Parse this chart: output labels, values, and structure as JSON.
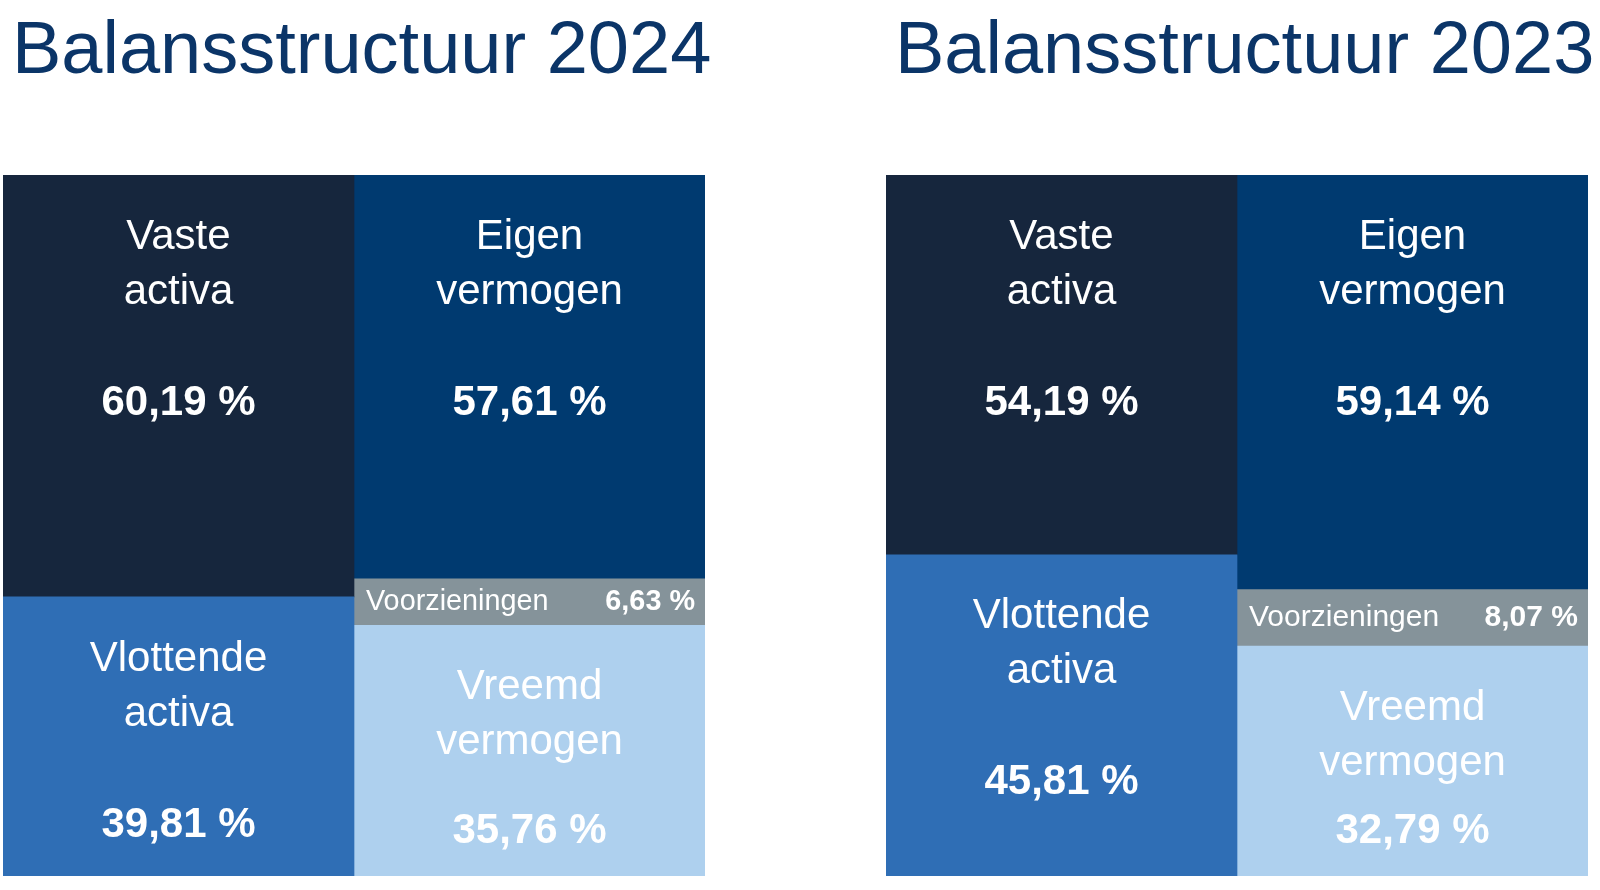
{
  "chart_data": [
    {
      "type": "bar",
      "title": "Balansstructuur 2024",
      "categories": [
        null,
        null
      ],
      "stacked": true,
      "ylim": [
        0,
        100
      ],
      "tick_labels": false,
      "series": [
        {
          "name": "Vlottende activa",
          "color": "#2f6eb5",
          "values": [
            39.81,
            null
          ],
          "value_labels": [
            "39,81 %",
            null
          ]
        },
        {
          "name": "Vaste activa",
          "color": "#16263d",
          "values": [
            60.19,
            null
          ],
          "value_labels": [
            "60,19 %",
            null
          ]
        },
        {
          "name": "Vreemd vermogen",
          "color": "#aed0ee",
          "values": [
            null,
            35.76
          ],
          "value_labels": [
            null,
            "35,76 %"
          ]
        },
        {
          "name": "Voorzieningen",
          "color": "#85939a",
          "values": [
            null,
            6.63
          ],
          "value_labels": [
            null,
            "6,63 %"
          ]
        },
        {
          "name": "Eigen vermogen",
          "color": "#003a70",
          "values": [
            null,
            57.61
          ],
          "value_labels": [
            null,
            "57,61 %"
          ]
        }
      ]
    },
    {
      "type": "bar",
      "title": "Balansstructuur 2023",
      "categories": [
        null,
        null
      ],
      "stacked": true,
      "ylim": [
        0,
        100
      ],
      "tick_labels": false,
      "series": [
        {
          "name": "Vlottende activa",
          "color": "#2f6eb5",
          "values": [
            45.81,
            null
          ],
          "value_labels": [
            "45,81 %",
            null
          ]
        },
        {
          "name": "Vaste activa",
          "color": "#16263d",
          "values": [
            54.19,
            null
          ],
          "value_labels": [
            "54,19 %",
            null
          ]
        },
        {
          "name": "Vreemd vermogen",
          "color": "#aed0ee",
          "values": [
            null,
            32.79
          ],
          "value_labels": [
            null,
            "32,79 %"
          ]
        },
        {
          "name": "Voorzieningen",
          "color": "#85939a",
          "values": [
            null,
            8.07
          ],
          "value_labels": [
            null,
            "8,07 %"
          ]
        },
        {
          "name": "Eigen vermogen",
          "color": "#003a70",
          "values": [
            null,
            59.14
          ],
          "value_labels": [
            null,
            "59,14 %"
          ]
        }
      ]
    }
  ]
}
